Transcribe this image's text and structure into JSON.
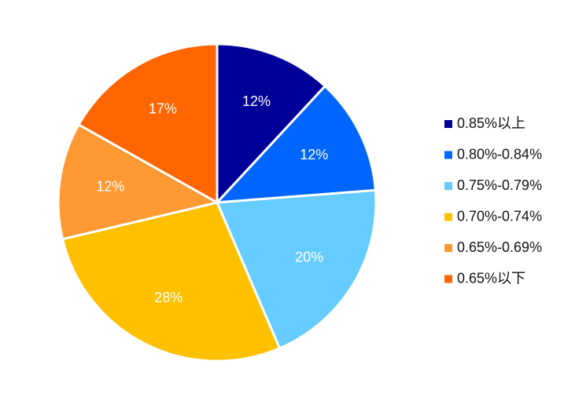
{
  "chart_data": {
    "type": "pie",
    "title": "",
    "start_angle": "12 o'clock",
    "direction": "clockwise",
    "legend_position": "right",
    "slices": [
      {
        "label": "0.85%以上",
        "value": 12,
        "value_label": "12%",
        "color": "#000099"
      },
      {
        "label": "0.80%-0.84%",
        "value": 12,
        "value_label": "12%",
        "color": "#0066FF"
      },
      {
        "label": "0.75%-0.79%",
        "value": 20,
        "value_label": "20%",
        "color": "#66CCFF"
      },
      {
        "label": "0.70%-0.74%",
        "value": 28,
        "value_label": "28%",
        "color": "#FFC000"
      },
      {
        "label": "0.65%-0.69%",
        "value": 12,
        "value_label": "12%",
        "color": "#FF9933"
      },
      {
        "label": "0.65%以下",
        "value": 17,
        "value_label": "17%",
        "color": "#FF6600"
      }
    ]
  }
}
